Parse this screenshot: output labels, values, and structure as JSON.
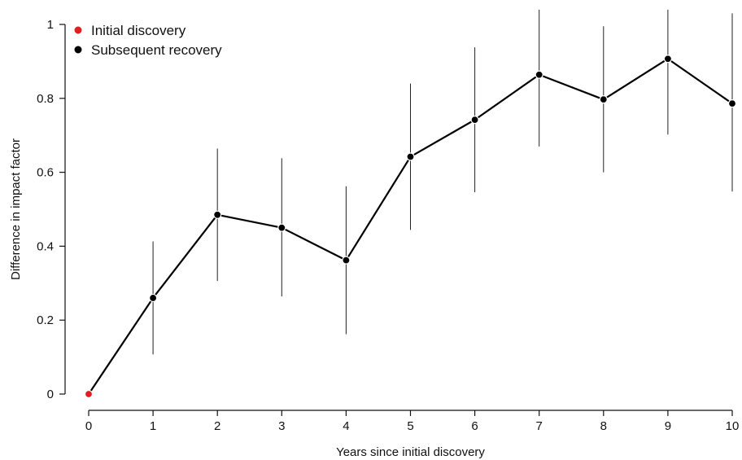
{
  "chart_data": {
    "type": "line",
    "title": "",
    "xlabel": "Years since initial discovery",
    "ylabel": "Difference in impact factor",
    "xlim": [
      0,
      10
    ],
    "ylim": [
      0,
      1
    ],
    "x_ticks": [
      "0",
      "1",
      "2",
      "3",
      "4",
      "5",
      "6",
      "7",
      "8",
      "9",
      "10"
    ],
    "y_ticks": [
      "0",
      "0.2",
      "0.4",
      "0.6",
      "0.8",
      "1"
    ],
    "grid": false,
    "legend_position": "top-left",
    "legend": [
      {
        "label": "Initial discovery",
        "color": "#e02020"
      },
      {
        "label": "Subsequent recovery",
        "color": "#000000"
      }
    ],
    "series": [
      {
        "x": [
          0,
          1,
          2,
          3,
          4,
          5,
          6,
          7,
          8,
          9,
          10
        ],
        "values": [
          0,
          0.26,
          0.485,
          0.45,
          0.362,
          0.642,
          0.742,
          0.864,
          0.797,
          0.907,
          0.786
        ],
        "lower": [
          0,
          0.107,
          0.306,
          0.264,
          0.162,
          0.444,
          0.546,
          0.67,
          0.6,
          0.702,
          0.548
        ],
        "upper": [
          0,
          0.413,
          0.664,
          0.638,
          0.562,
          0.84,
          0.938,
          1.04,
          0.995,
          1.04,
          1.03
        ],
        "point_colors": [
          "#e02020",
          "#000000",
          "#000000",
          "#000000",
          "#000000",
          "#000000",
          "#000000",
          "#000000",
          "#000000",
          "#000000",
          "#000000"
        ]
      }
    ]
  }
}
